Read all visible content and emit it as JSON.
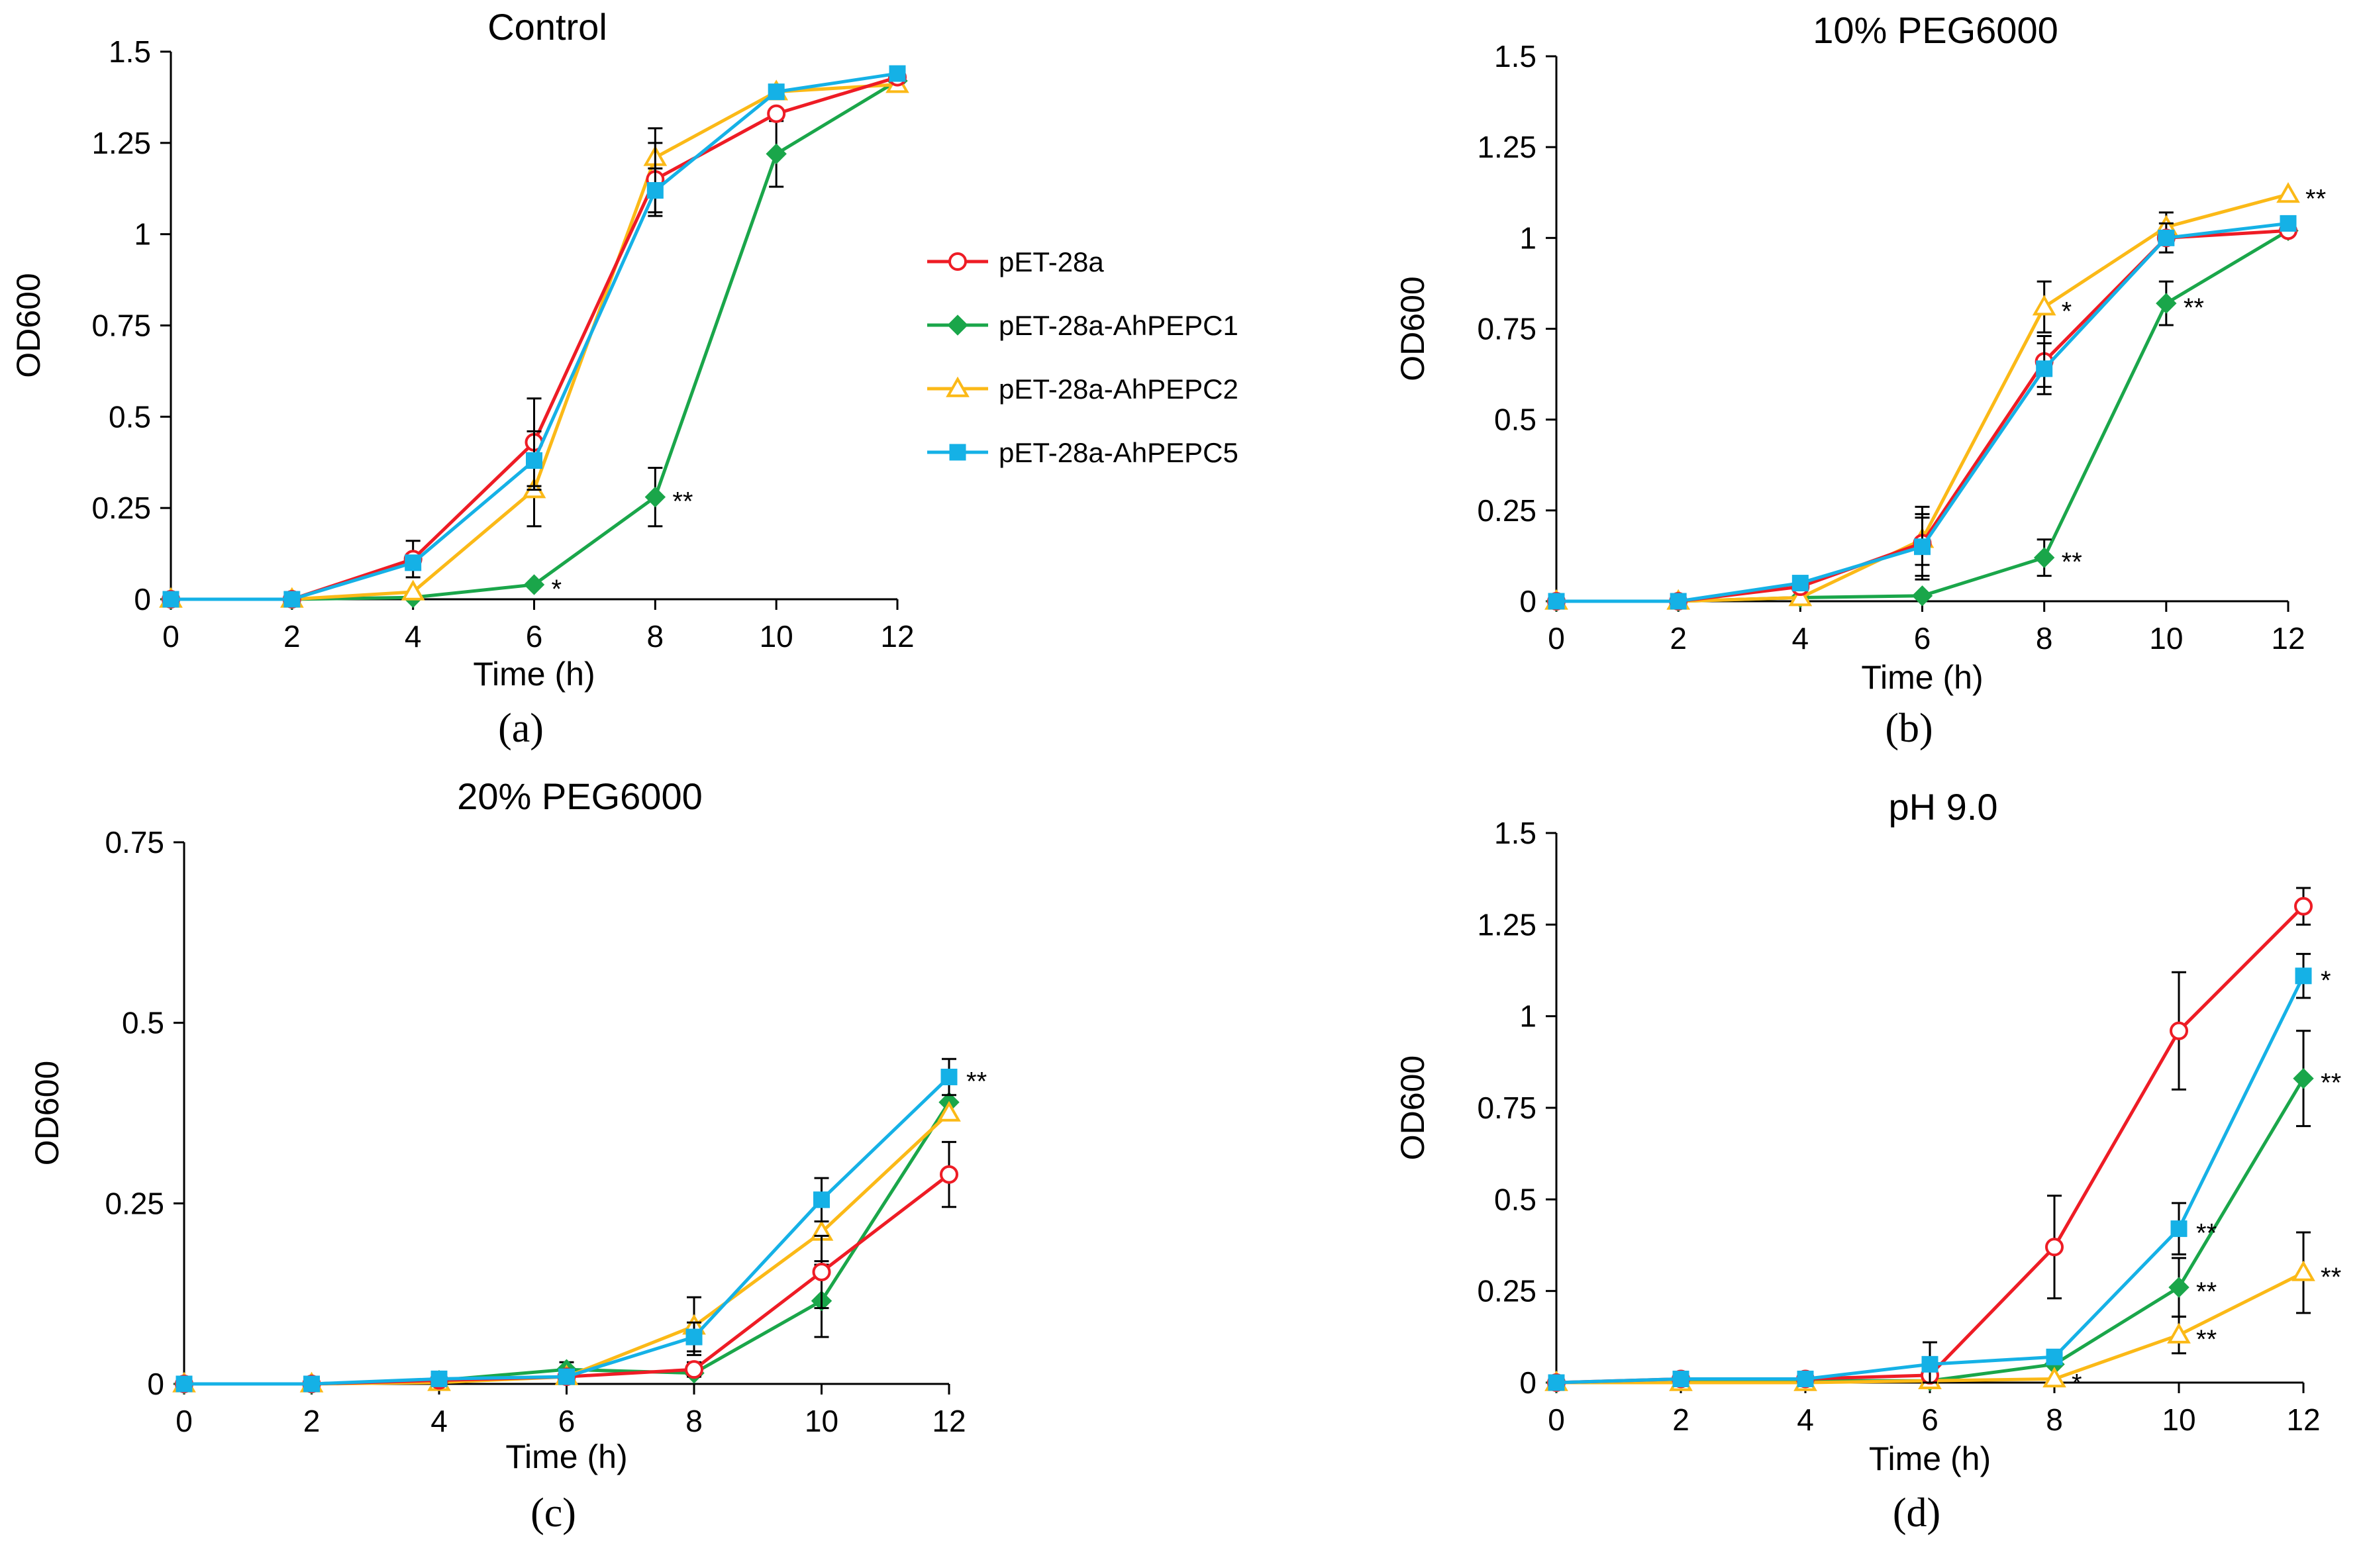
{
  "legend": {
    "position": "right of panel (a)",
    "entries": [
      {
        "series": "pET-28a"
      },
      {
        "series": "pET-28a-AhPEPC1"
      },
      {
        "series": "pET-28a-AhPEPC2"
      },
      {
        "series": "pET-28a-AhPEPC5"
      }
    ]
  },
  "series_style": {
    "pET-28a": {
      "color": "#ee1c25",
      "marker": "circle-open"
    },
    "pET-28a-AhPEPC1": {
      "color": "#1aa64a",
      "marker": "diamond-filled"
    },
    "pET-28a-AhPEPC2": {
      "color": "#fbb917",
      "marker": "triangle-open"
    },
    "pET-28a-AhPEPC5": {
      "color": "#15b1e6",
      "marker": "square-filled"
    }
  },
  "chart_data": [
    {
      "type": "line",
      "title": "Control",
      "panel_label": "(a)",
      "xlabel": "Time (h)",
      "ylabel": "OD600",
      "x": [
        0,
        2,
        4,
        6,
        8,
        10,
        12
      ],
      "ylim": [
        0,
        1.5
      ],
      "yticks": [
        0,
        0.25,
        0.5,
        0.75,
        1,
        1.25,
        1.5
      ],
      "ytick_labels": [
        "0",
        "0.25",
        "0.5",
        "0.75",
        "1",
        "1.25",
        "1.5"
      ],
      "series": [
        {
          "name": "pET-28a",
          "values": [
            0,
            0,
            0.11,
            0.43,
            1.15,
            1.33,
            1.43
          ],
          "err": [
            0,
            0,
            0.05,
            0.12,
            0.1,
            0,
            0
          ]
        },
        {
          "name": "pET-28a-AhPEPC1",
          "values": [
            0,
            0,
            0.005,
            0.04,
            0.28,
            1.22,
            1.42
          ],
          "err": [
            0,
            0,
            0,
            0,
            0.08,
            0.09,
            0
          ]
        },
        {
          "name": "pET-28a-AhPEPC2",
          "values": [
            0,
            0,
            0.02,
            0.3,
            1.21,
            1.39,
            1.41
          ],
          "err": [
            0,
            0,
            0,
            0.1,
            0.08,
            0,
            0
          ]
        },
        {
          "name": "pET-28a-AhPEPC5",
          "values": [
            0,
            0,
            0.1,
            0.38,
            1.12,
            1.39,
            1.44
          ],
          "err": [
            0,
            0,
            0,
            0.08,
            0.06,
            0,
            0
          ]
        }
      ],
      "annotations": [
        {
          "x": 6,
          "y": 0.04,
          "text": "*"
        },
        {
          "x": 8,
          "y": 0.28,
          "text": "**"
        }
      ]
    },
    {
      "type": "line",
      "title": "10% PEG6000",
      "panel_label": "(b)",
      "xlabel": "Time (h)",
      "ylabel": "OD600",
      "x": [
        0,
        2,
        4,
        6,
        8,
        10,
        12
      ],
      "ylim": [
        0,
        1.5
      ],
      "yticks": [
        0,
        0.25,
        0.5,
        0.75,
        1,
        1.25,
        1.5
      ],
      "ytick_labels": [
        "0",
        "0.25",
        "0.5",
        "0.75",
        "1",
        "1.25",
        "1.5"
      ],
      "series": [
        {
          "name": "pET-28a",
          "values": [
            0,
            0,
            0.04,
            0.16,
            0.66,
            1,
            1.02
          ],
          "err": [
            0,
            0.01,
            0,
            0.1,
            0.07,
            0.04,
            0
          ]
        },
        {
          "name": "pET-28a-AhPEPC1",
          "values": [
            0,
            0,
            0.01,
            0.015,
            0.12,
            0.82,
            1.02
          ],
          "err": [
            0,
            0,
            0,
            0,
            0.05,
            0.06,
            0
          ]
        },
        {
          "name": "pET-28a-AhPEPC2",
          "values": [
            0,
            0,
            0.01,
            0.17,
            0.81,
            1.03,
            1.12
          ],
          "err": [
            0,
            0,
            0,
            0.07,
            0.07,
            0.04,
            0
          ]
        },
        {
          "name": "pET-28a-AhPEPC5",
          "values": [
            0,
            0,
            0.05,
            0.15,
            0.64,
            1,
            1.04
          ],
          "err": [
            0,
            0,
            0,
            0.08,
            0.07,
            0,
            0
          ]
        }
      ],
      "annotations": [
        {
          "x": 8,
          "y": 0.81,
          "text": "*"
        },
        {
          "x": 8,
          "y": 0.12,
          "text": "**"
        },
        {
          "x": 10,
          "y": 0.82,
          "text": "**"
        },
        {
          "x": 12,
          "y": 1.12,
          "text": "**"
        }
      ]
    },
    {
      "type": "line",
      "title": "20% PEG6000",
      "panel_label": "(c)",
      "xlabel": "Time (h)",
      "ylabel": "OD600",
      "x": [
        0,
        2,
        4,
        6,
        8,
        10,
        12
      ],
      "ylim": [
        0,
        0.75
      ],
      "yticks": [
        0,
        0.25,
        0.5,
        0.75
      ],
      "ytick_labels": [
        "0",
        "0.25",
        "0.5",
        "0.75"
      ],
      "series": [
        {
          "name": "pET-28a",
          "values": [
            0,
            0,
            0.005,
            0.01,
            0.02,
            0.155,
            0.29
          ],
          "err": [
            0,
            0,
            0,
            0.01,
            0.01,
            0.05,
            0.045
          ]
        },
        {
          "name": "pET-28a-AhPEPC1",
          "values": [
            0,
            0,
            0.005,
            0.02,
            0.015,
            0.115,
            0.39
          ],
          "err": [
            0,
            0,
            0,
            0.01,
            0,
            0.05,
            0
          ]
        },
        {
          "name": "pET-28a-AhPEPC2",
          "values": [
            0,
            0,
            0.002,
            0.01,
            0.08,
            0.21,
            0.375
          ],
          "err": [
            0,
            0,
            0,
            0.01,
            0.04,
            0.04,
            0
          ]
        },
        {
          "name": "pET-28a-AhPEPC5",
          "values": [
            0,
            0,
            0.007,
            0.01,
            0.065,
            0.255,
            0.425
          ],
          "err": [
            0,
            0,
            0,
            0.01,
            0.02,
            0.03,
            0.025
          ]
        }
      ],
      "annotations": [
        {
          "x": 12,
          "y": 0.425,
          "text": "**"
        }
      ]
    },
    {
      "type": "line",
      "title": "pH 9.0",
      "panel_label": "(d)",
      "xlabel": "Time (h)",
      "ylabel": "OD600",
      "x": [
        0,
        2,
        4,
        6,
        8,
        10,
        12
      ],
      "ylim": [
        0,
        1.5
      ],
      "yticks": [
        0,
        0.25,
        0.5,
        0.75,
        1,
        1.25,
        1.5
      ],
      "ytick_labels": [
        "0",
        "0.25",
        "0.5",
        "0.75",
        "1",
        "1.25",
        "1.5"
      ],
      "series": [
        {
          "name": "pET-28a",
          "values": [
            0,
            0.01,
            0.01,
            0.02,
            0.37,
            0.96,
            1.3
          ],
          "err": [
            0,
            0,
            0,
            0,
            0.14,
            0.16,
            0.05
          ]
        },
        {
          "name": "pET-28a-AhPEPC1",
          "values": [
            0,
            0.005,
            0.005,
            0.005,
            0.05,
            0.26,
            0.83
          ],
          "err": [
            0,
            0,
            0,
            0,
            0,
            0.08,
            0.13
          ]
        },
        {
          "name": "pET-28a-AhPEPC2",
          "values": [
            0,
            0,
            0,
            0.005,
            0.01,
            0.13,
            0.3
          ],
          "err": [
            0,
            0,
            0,
            0,
            0,
            0.05,
            0.11
          ]
        },
        {
          "name": "pET-28a-AhPEPC5",
          "values": [
            0,
            0.01,
            0.01,
            0.05,
            0.07,
            0.42,
            1.11
          ],
          "err": [
            0,
            0,
            0,
            0.06,
            0,
            0.07,
            0.06
          ]
        }
      ],
      "annotations": [
        {
          "x": 8,
          "y": 0.01,
          "text": "*"
        },
        {
          "x": 10,
          "y": 0.42,
          "text": "**"
        },
        {
          "x": 10,
          "y": 0.26,
          "text": "**"
        },
        {
          "x": 10,
          "y": 0.13,
          "text": "**"
        },
        {
          "x": 12,
          "y": 1.11,
          "text": "*"
        },
        {
          "x": 12,
          "y": 0.83,
          "text": "**"
        },
        {
          "x": 12,
          "y": 0.3,
          "text": "**"
        }
      ]
    }
  ]
}
